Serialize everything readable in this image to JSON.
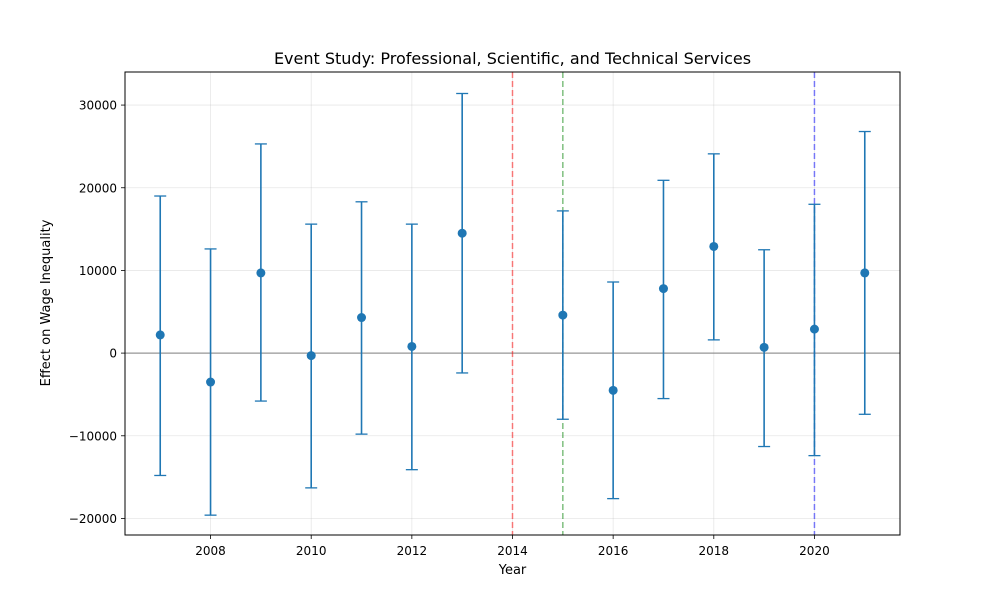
{
  "chart_data": {
    "type": "errorbar",
    "title": "Event Study: Professional, Scientific, and Technical Services",
    "xlabel": "Year",
    "ylabel": "Effect on Wage Inequality",
    "xlim": [
      2006.3,
      2021.7
    ],
    "ylim": [
      -22000,
      34000
    ],
    "x_ticks": [
      2008,
      2010,
      2012,
      2014,
      2016,
      2018,
      2020
    ],
    "x_tick_labels": [
      "2008",
      "2010",
      "2012",
      "2014",
      "2016",
      "2018",
      "2020"
    ],
    "y_ticks": [
      -20000,
      -10000,
      0,
      10000,
      20000,
      30000
    ],
    "y_tick_labels": [
      "−20000",
      "−10000",
      "0",
      "10000",
      "20000",
      "30000"
    ],
    "grid": true,
    "reference_line": {
      "y": 0,
      "color": "#808080"
    },
    "vertical_lines": [
      {
        "x": 2014,
        "color": "#ff0000",
        "style": "dashed"
      },
      {
        "x": 2015,
        "color": "#008000",
        "style": "dashed"
      },
      {
        "x": 2020,
        "color": "#0000ff",
        "style": "dashed"
      }
    ],
    "series": [
      {
        "color": "#1f77b4",
        "points": [
          {
            "x": 2007,
            "y": 2200,
            "lower": -14800,
            "upper": 19000
          },
          {
            "x": 2008,
            "y": -3500,
            "lower": -19600,
            "upper": 12600
          },
          {
            "x": 2009,
            "y": 9700,
            "lower": -5800,
            "upper": 25300
          },
          {
            "x": 2010,
            "y": -300,
            "lower": -16300,
            "upper": 15600
          },
          {
            "x": 2011,
            "y": 4300,
            "lower": -9800,
            "upper": 18300
          },
          {
            "x": 2012,
            "y": 800,
            "lower": -14100,
            "upper": 15600
          },
          {
            "x": 2013,
            "y": 14500,
            "lower": -2400,
            "upper": 31400
          },
          {
            "x": 2015,
            "y": 4600,
            "lower": -8000,
            "upper": 17200
          },
          {
            "x": 2016,
            "y": -4500,
            "lower": -17600,
            "upper": 8600
          },
          {
            "x": 2017,
            "y": 7800,
            "lower": -5500,
            "upper": 20900
          },
          {
            "x": 2018,
            "y": 12900,
            "lower": 1600,
            "upper": 24100
          },
          {
            "x": 2019,
            "y": 700,
            "lower": -11300,
            "upper": 12500
          },
          {
            "x": 2020,
            "y": 2900,
            "lower": -12400,
            "upper": 18000
          },
          {
            "x": 2021,
            "y": 9700,
            "lower": -7400,
            "upper": 26800
          }
        ]
      }
    ]
  }
}
